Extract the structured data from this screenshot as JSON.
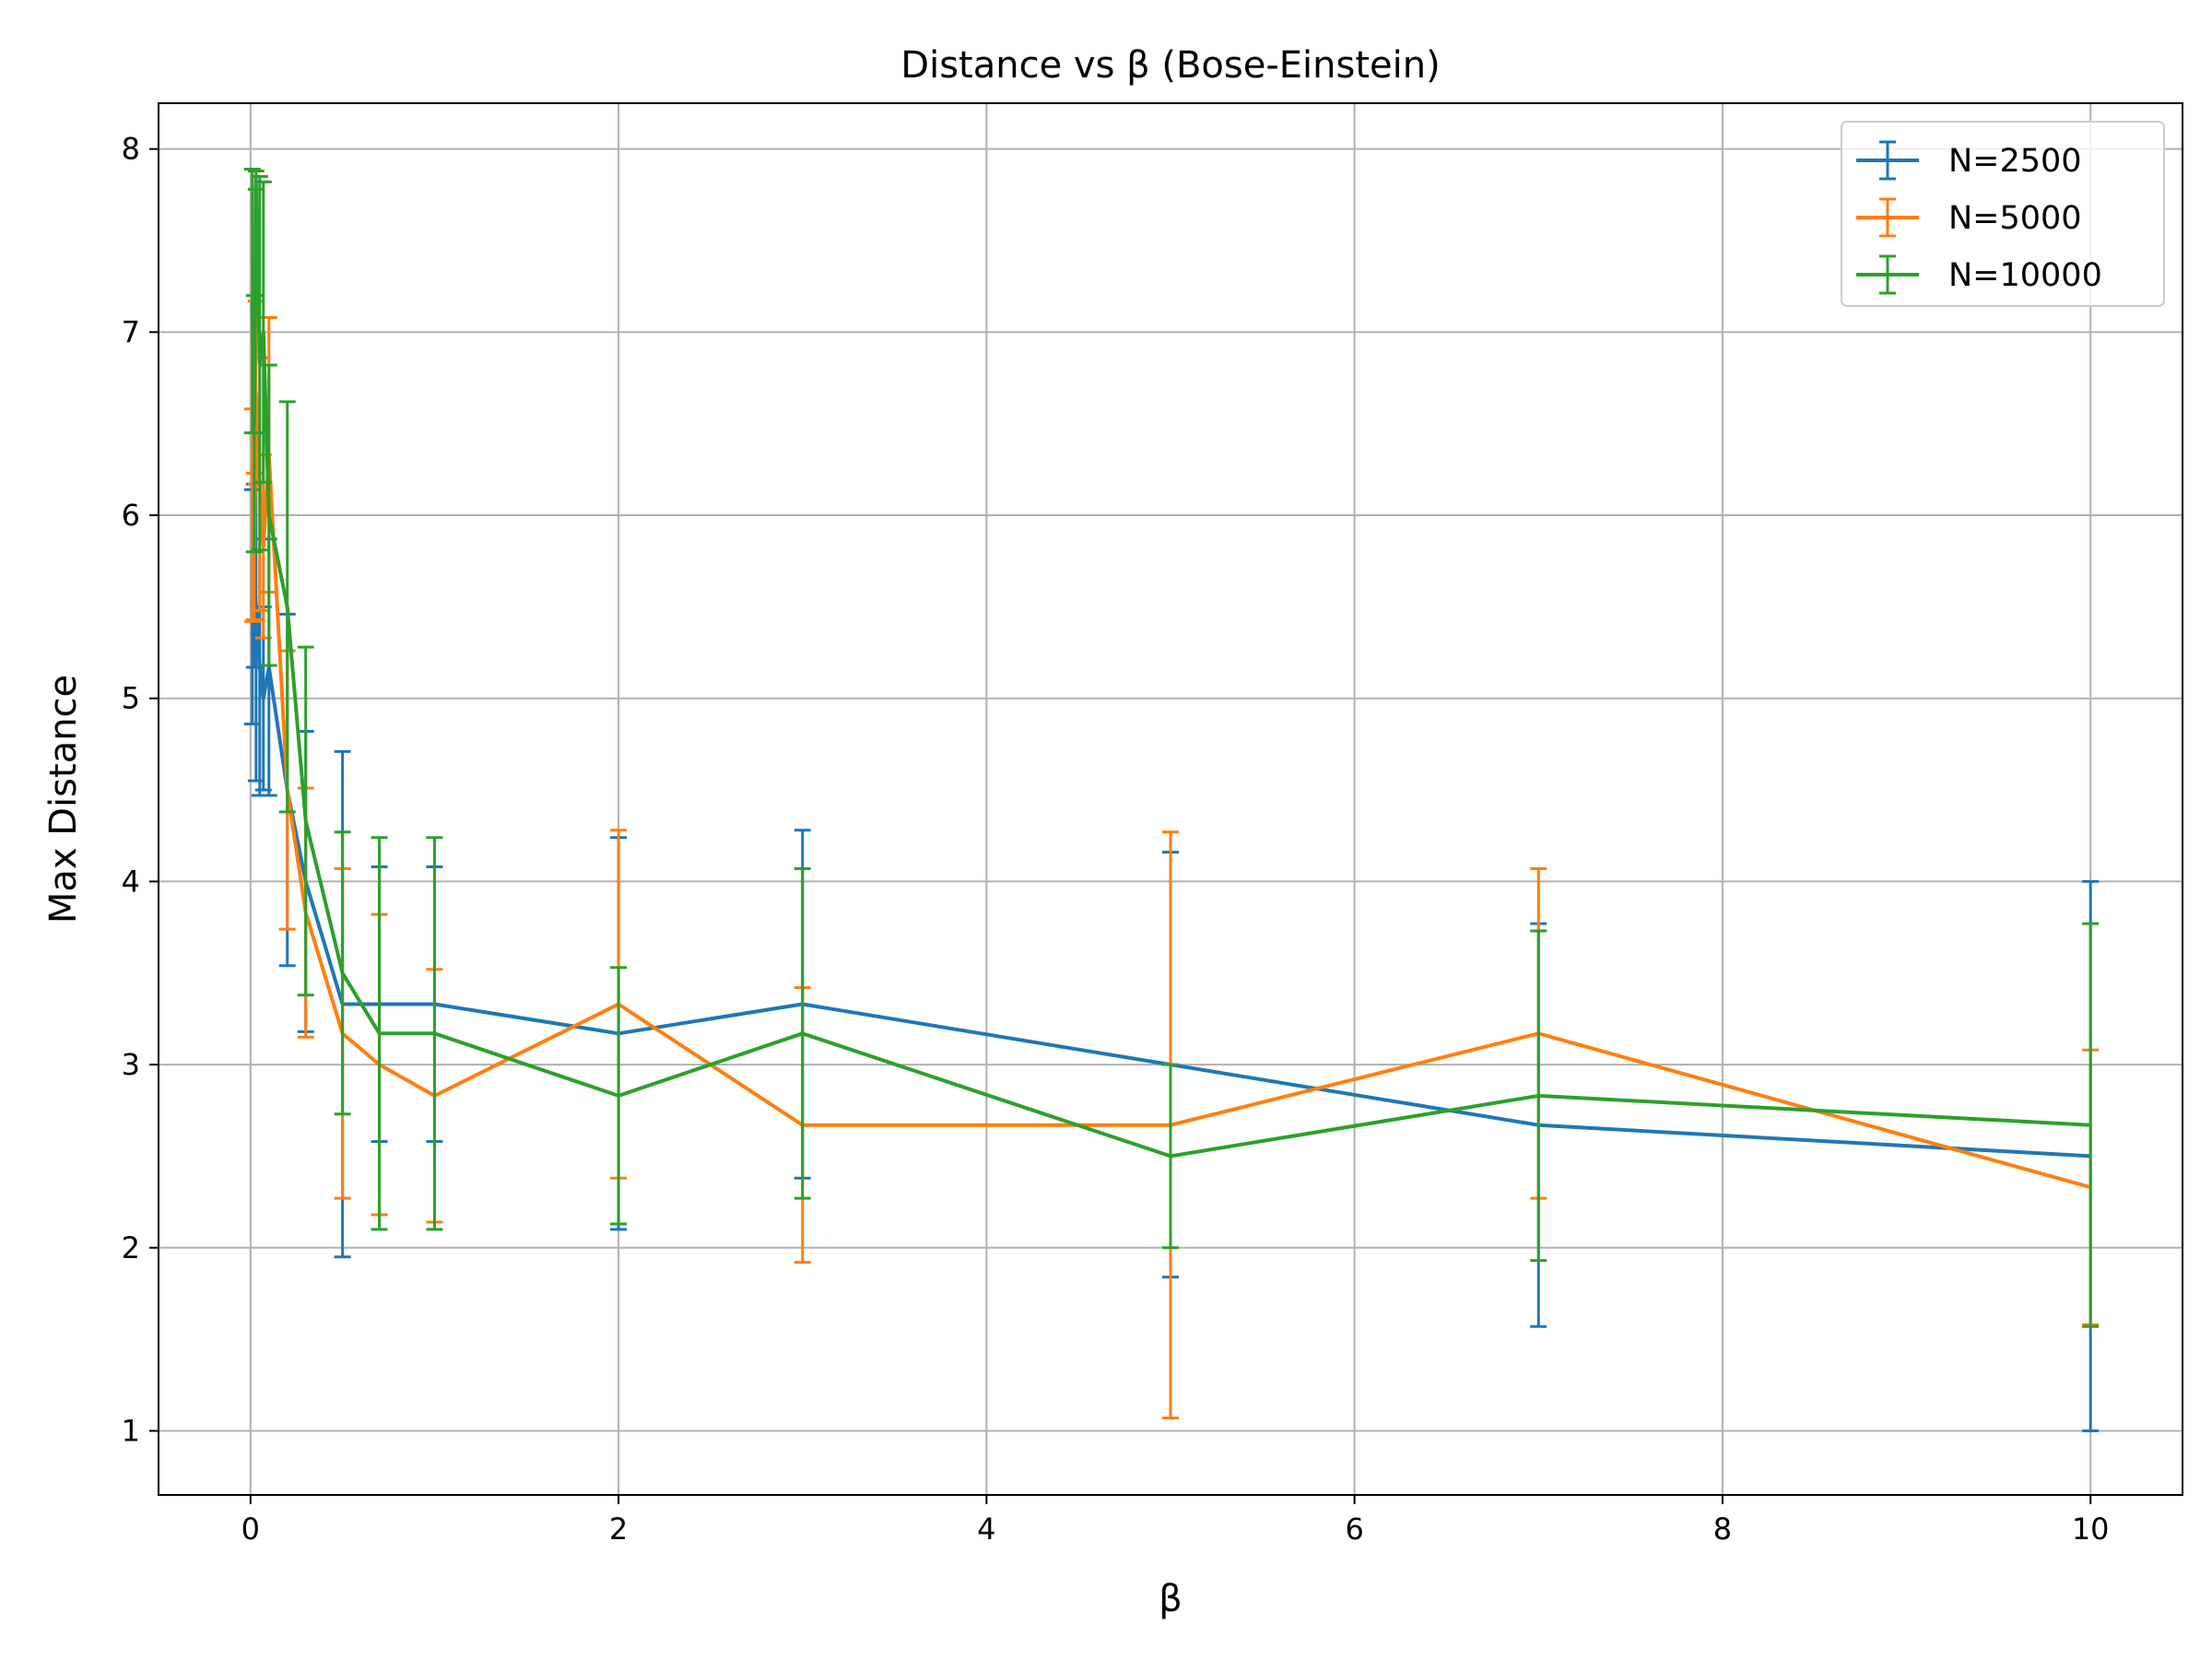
{
  "chart_data": {
    "type": "line",
    "title": "Distance vs β (Bose-Einstein)",
    "xlabel": "β",
    "ylabel": "Max Distance",
    "xlim": [
      -0.5,
      10.5
    ],
    "ylim": [
      0.65,
      8.25
    ],
    "xticks": [
      "0",
      "2",
      "4",
      "6",
      "8",
      "10"
    ],
    "xtick_values": [
      0,
      2,
      4,
      6,
      8,
      10
    ],
    "yticks": [
      "1",
      "2",
      "3",
      "4",
      "5",
      "6",
      "7",
      "8"
    ],
    "ytick_values": [
      1,
      2,
      3,
      4,
      5,
      6,
      7,
      8
    ],
    "grid": true,
    "legend_position": "top-right",
    "error_bars": true,
    "series": [
      {
        "name": "N=2500",
        "color": "#1f77b4",
        "x": [
          0.01,
          0.02,
          0.03,
          0.05,
          0.07,
          0.1,
          0.2,
          0.3,
          0.5,
          0.7,
          1,
          2,
          3,
          5,
          7,
          10
        ],
        "y": [
          5.5,
          5.67,
          5.5,
          5.17,
          5.0,
          5.17,
          4.5,
          4.0,
          3.33,
          3.33,
          3.33,
          3.17,
          3.33,
          3.0,
          2.67,
          2.5
        ],
        "yerr": [
          0.64,
          0.5,
          0.95,
          0.7,
          0.5,
          0.7,
          0.96,
          0.82,
          1.38,
          0.75,
          0.75,
          1.07,
          0.95,
          1.16,
          1.1,
          1.5
        ]
      },
      {
        "name": "N=5000",
        "color": "#ff7f0e",
        "x": [
          0.01,
          0.02,
          0.03,
          0.05,
          0.07,
          0.1,
          0.2,
          0.3,
          0.5,
          0.7,
          1,
          2,
          3,
          5,
          7,
          10
        ],
        "y": [
          6.0,
          5.83,
          6.67,
          6.17,
          5.83,
          6.33,
          4.5,
          3.83,
          3.17,
          3.0,
          2.83,
          3.33,
          2.67,
          2.67,
          3.17,
          2.33
        ],
        "yerr": [
          0.58,
          0.4,
          0.5,
          0.69,
          0.5,
          0.75,
          0.76,
          0.68,
          0.9,
          0.82,
          0.69,
          0.95,
          0.75,
          1.6,
          0.9,
          0.75
        ]
      },
      {
        "name": "N=10000",
        "color": "#2ca02c",
        "x": [
          0.01,
          0.02,
          0.03,
          0.05,
          0.07,
          0.1,
          0.2,
          0.3,
          0.5,
          0.7,
          1,
          2,
          3,
          5,
          7,
          10
        ],
        "y": [
          7.17,
          6.5,
          7.83,
          6.83,
          7.0,
          6.0,
          5.5,
          4.33,
          3.5,
          3.17,
          3.17,
          2.83,
          3.17,
          2.5,
          2.83,
          2.67
        ],
        "yerr": [
          0.72,
          0.7,
          0.05,
          1.02,
          0.82,
          0.82,
          1.12,
          0.95,
          0.77,
          1.07,
          1.07,
          0.7,
          0.9,
          0.5,
          0.9,
          1.1
        ]
      }
    ]
  }
}
